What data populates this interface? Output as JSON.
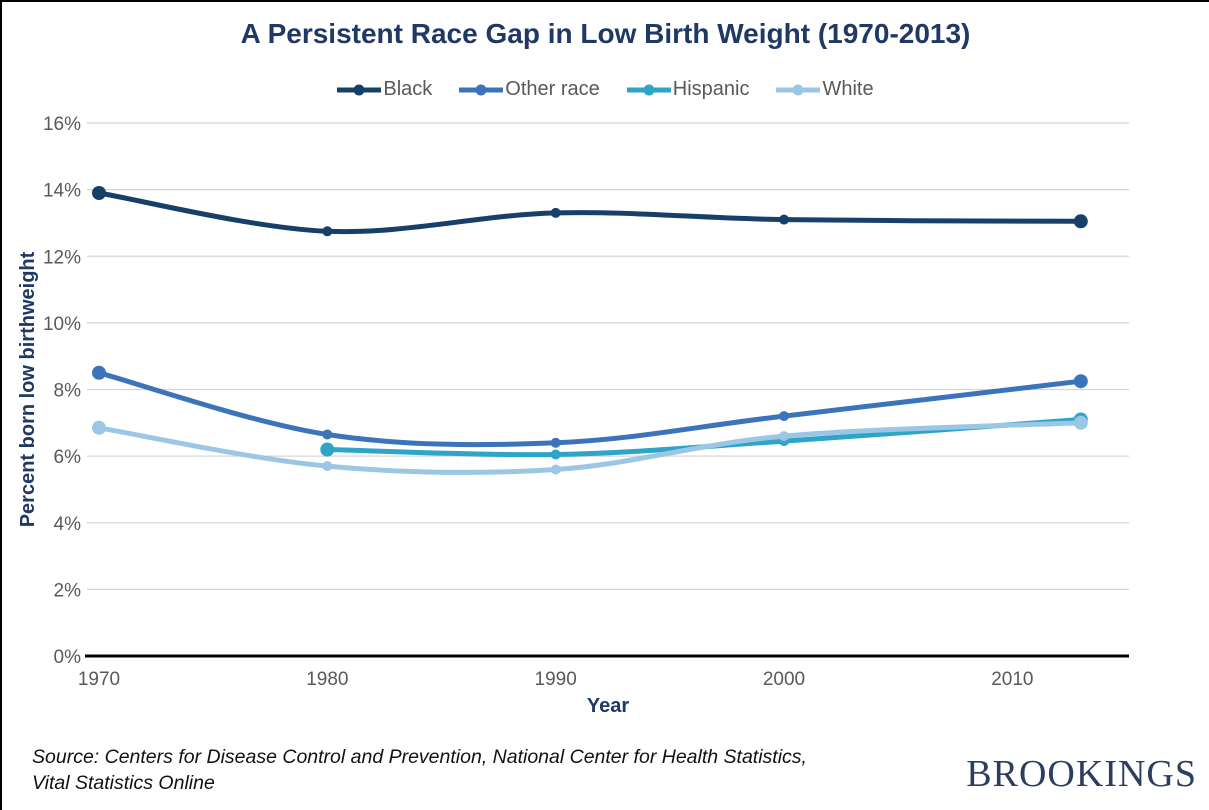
{
  "title": "A Persistent Race Gap in Low Birth Weight (1970-2013)",
  "source": {
    "lines": [
      "Source: Centers for Disease Control and Prevention, National Center for Health Statistics,",
      "Vital Statistics Online"
    ]
  },
  "brand": "BROOKINGS",
  "colors": {
    "title_navy": "#1F3864",
    "tick_gray": "#595959",
    "gridline": "#D5D5D5",
    "axis_line": "#000000",
    "brand_navy": "#2B3E5E"
  },
  "chart_data": {
    "type": "line",
    "title": "A Persistent Race Gap in Low Birth Weight (1970-2013)",
    "xlabel": "Year",
    "ylabel": "Percent born low birthweight",
    "xlim": [
      1969.5,
      2015
    ],
    "ylim": [
      0,
      16
    ],
    "x_ticks": [
      1970,
      1980,
      1990,
      2000,
      2010
    ],
    "y_ticks": [
      "0%",
      "2%",
      "4%",
      "6%",
      "8%",
      "10%",
      "12%",
      "14%",
      "16%"
    ],
    "y_tick_step_pct": 2,
    "grid": true,
    "legend_position": "top-center",
    "line_style": "smooth",
    "series": [
      {
        "name": "Black",
        "color": "#164069",
        "points": [
          [
            1970,
            13.9
          ],
          [
            1980,
            12.75
          ],
          [
            1990,
            13.3
          ],
          [
            2000,
            13.1
          ],
          [
            2013,
            13.05
          ]
        ]
      },
      {
        "name": "Other race",
        "color": "#3B74BA",
        "points": [
          [
            1970,
            8.5
          ],
          [
            1980,
            6.65
          ],
          [
            1990,
            6.4
          ],
          [
            2000,
            7.2
          ],
          [
            2013,
            8.25
          ]
        ]
      },
      {
        "name": "Hispanic",
        "color": "#2EA4C9",
        "points": [
          [
            1980,
            6.2
          ],
          [
            1990,
            6.05
          ],
          [
            2000,
            6.45
          ],
          [
            2013,
            7.1
          ]
        ]
      },
      {
        "name": "White",
        "color": "#9CC7E4",
        "points": [
          [
            1970,
            6.85
          ],
          [
            1980,
            5.7
          ],
          [
            1990,
            5.6
          ],
          [
            2000,
            6.6
          ],
          [
            2013,
            7.0
          ]
        ]
      }
    ]
  }
}
